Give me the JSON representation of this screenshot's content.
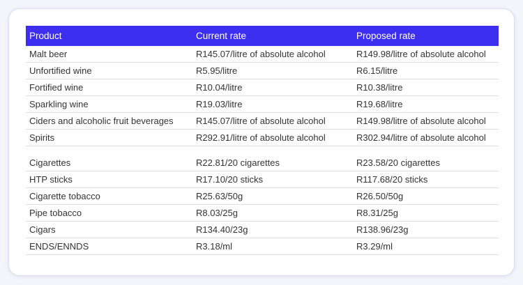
{
  "table": {
    "headers": [
      "Product",
      "Current rate",
      "Proposed rate"
    ],
    "groups": [
      {
        "rows": [
          [
            "Malt beer",
            "R145.07/litre of absolute alcohol",
            "R149.98/litre of absolute alcohol"
          ],
          [
            "Unfortified wine",
            "R5.95/litre",
            "R6.15/litre"
          ],
          [
            "Fortified wine",
            "R10.04/litre",
            "R10.38/litre"
          ],
          [
            "Sparkling wine",
            "R19.03/litre",
            "R19.68/litre"
          ],
          [
            "Ciders and alcoholic fruit beverages",
            "R145.07/litre of absolute alcohol",
            "R149.98/litre of absolute alcohol"
          ],
          [
            "Spirits",
            "R292.91/litre of absolute alcohol",
            "R302.94/litre of absolute alcohol"
          ]
        ]
      },
      {
        "rows": [
          [
            "Cigarettes",
            "R22.81/20 cigarettes",
            "R23.58/20 cigarettes"
          ],
          [
            "HTP sticks",
            "R17.10/20 sticks",
            "R117.68/20 sticks"
          ],
          [
            "Cigarette tobacco",
            "R25.63/50g",
            "R26.50/50g"
          ],
          [
            "Pipe tobacco",
            "R8.03/25g",
            "R8.31/25g"
          ],
          [
            "Cigars",
            "R134.40/23g",
            "R138.96/23g"
          ],
          [
            "ENDS/ENNDS",
            "R3.18/ml",
            "R3.29/ml"
          ]
        ]
      }
    ]
  }
}
